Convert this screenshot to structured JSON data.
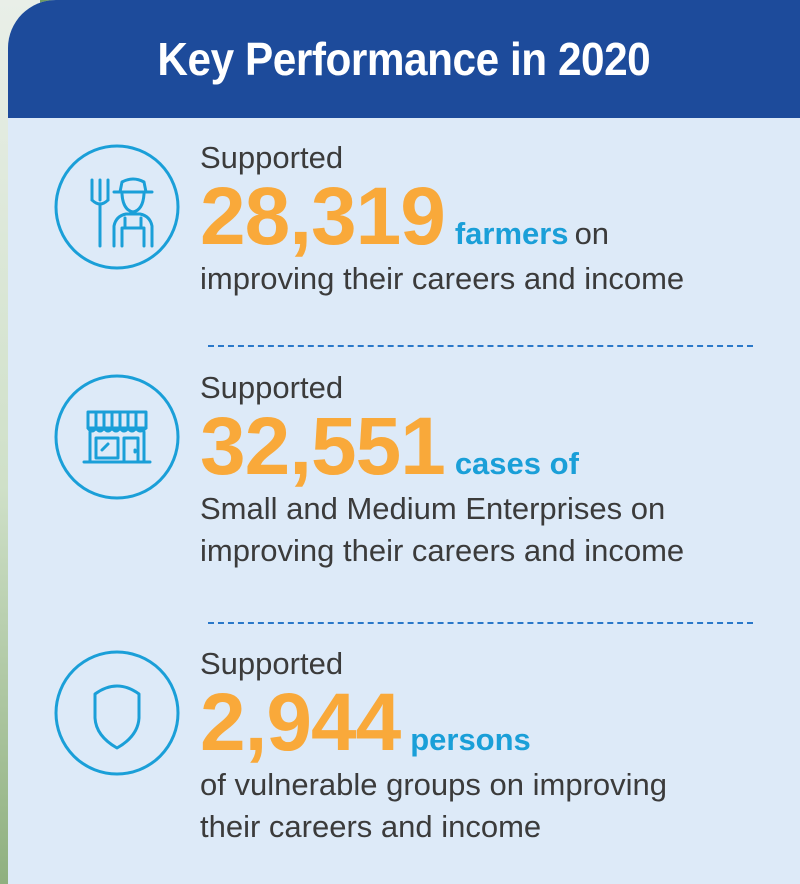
{
  "title": "Key Performance in 2020",
  "colors": {
    "header_bg": "#1d4b9b",
    "card_bg": "#ddeaf8",
    "number": "#f9a93a",
    "unit": "#1a9fd8",
    "icon_stroke": "#1a9fd8"
  },
  "items": [
    {
      "icon": "farmer-icon",
      "lead": "Supported",
      "number": "28,319",
      "unit": "farmers",
      "after": "on",
      "desc": [
        "improving their careers and income"
      ]
    },
    {
      "icon": "storefront-icon",
      "lead": "Supported",
      "number": "32,551",
      "unit": "cases of",
      "after": "",
      "desc": [
        "Small and Medium Enterprises on",
        "improving their careers and income"
      ]
    },
    {
      "icon": "shield-icon",
      "lead": "Supported",
      "number": "2,944",
      "unit": "persons",
      "after": "",
      "desc": [
        "of vulnerable groups on improving",
        "their careers and income"
      ]
    }
  ]
}
